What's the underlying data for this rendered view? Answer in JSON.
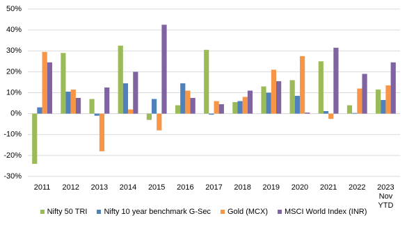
{
  "chart_data": {
    "type": "bar",
    "categories": [
      "2011",
      "2012",
      "2013",
      "2014",
      "2015",
      "2016",
      "2017",
      "2018",
      "2019",
      "2020",
      "2021",
      "2022",
      "2023 Nov YTD"
    ],
    "series": [
      {
        "name": "Nifty 50 TRI",
        "color": "#9bbb59",
        "values": [
          -24,
          29,
          7,
          32.5,
          -3,
          4,
          30.5,
          5.5,
          13,
          16,
          25,
          4,
          11.5
        ]
      },
      {
        "name": "Nifty 10 year benchmark G-Sec",
        "color": "#4f81bd",
        "values": [
          3,
          10.5,
          -1,
          14.5,
          7,
          14.5,
          -0.5,
          6,
          10,
          8.5,
          1.2,
          0.3,
          6.5
        ]
      },
      {
        "name": "Gold (MCX)",
        "color": "#f79646",
        "values": [
          29.5,
          11.5,
          -18,
          2,
          -8,
          11,
          6,
          8,
          21,
          27.5,
          -2.5,
          12,
          13.5
        ]
      },
      {
        "name": "MSCI World Index (INR)",
        "color": "#8064a2",
        "values": [
          24.5,
          7.5,
          12.5,
          20,
          42.5,
          7.5,
          4.5,
          11,
          15.5,
          0.5,
          31.5,
          19,
          24.5
        ]
      }
    ],
    "ylim": [
      -30,
      50
    ],
    "yticks": [
      {
        "value": -30,
        "label": "-30%"
      },
      {
        "value": -20,
        "label": "-20%"
      },
      {
        "value": -10,
        "label": "-10%"
      },
      {
        "value": 0,
        "label": "0%"
      },
      {
        "value": 10,
        "label": "10%"
      },
      {
        "value": 20,
        "label": "20%"
      },
      {
        "value": 30,
        "label": "30%"
      },
      {
        "value": 40,
        "label": "40%"
      },
      {
        "value": 50,
        "label": "50%"
      }
    ],
    "grid": true
  }
}
